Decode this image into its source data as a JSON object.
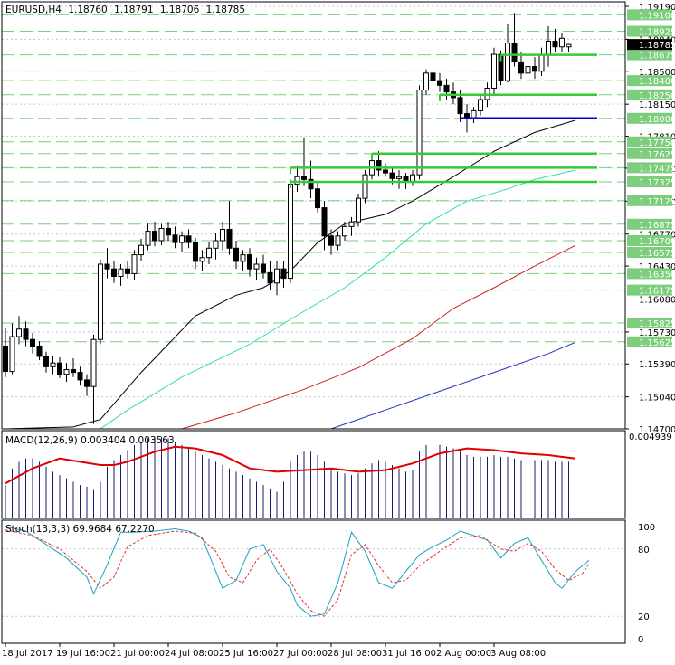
{
  "header": {
    "symbol": "EURUSD,H4",
    "open": "1.18760",
    "high": "1.18791",
    "low": "1.18706",
    "close": "1.18785"
  },
  "colors": {
    "background": "#ffffff",
    "frame": "#000000",
    "grid": "#c7c7c7",
    "level_dash": "#7ccd7c",
    "level_label_bg": "#7ccd7c",
    "support": "#33cc33",
    "pivot": "#0000c8",
    "ma_fast": "#000000",
    "ma_mid": "#33ddaa",
    "ma_slow": "#cc2222",
    "ma_long": "#2233bb",
    "macd_hist": "#1a1a6a",
    "macd_signal": "#e00000",
    "stoch_main": "#1ba1c5",
    "stoch_signal": "#e03030",
    "current_price_bg": "#000000"
  },
  "price_axis": {
    "min": 1.147,
    "max": 1.1919,
    "ticks": [
      "1.19190",
      "1.18840",
      "1.18500",
      "1.18150",
      "1.17810",
      "1.17470",
      "1.17120",
      "1.16770",
      "1.16430",
      "1.16080",
      "1.15730",
      "1.15390",
      "1.15040",
      "1.14700"
    ],
    "level_labels": [
      "1.19100",
      "1.18925",
      "1.18675",
      "1.18400",
      "1.18250",
      "1.18000",
      "1.17750",
      "1.17625",
      "1.17475",
      "1.17325",
      "1.17125",
      "1.16875",
      "1.16700",
      "1.16575",
      "1.16350",
      "1.16175",
      "1.15825",
      "1.15625"
    ],
    "current_price": "1.18785"
  },
  "chart_data": {
    "type": "candlestick",
    "candles": [
      [
        1.1558,
        1.1577,
        1.1525,
        1.1531
      ],
      [
        1.1531,
        1.1582,
        1.1528,
        1.1568
      ],
      [
        1.1568,
        1.159,
        1.156,
        1.1576
      ],
      [
        1.1576,
        1.1584,
        1.1558,
        1.1565
      ],
      [
        1.1565,
        1.1572,
        1.155,
        1.1558
      ],
      [
        1.1558,
        1.1563,
        1.1543,
        1.1547
      ],
      [
        1.1547,
        1.1552,
        1.153,
        1.1536
      ],
      [
        1.1536,
        1.1548,
        1.1528,
        1.154
      ],
      [
        1.154,
        1.1546,
        1.1524,
        1.1528
      ],
      [
        1.1528,
        1.154,
        1.152,
        1.1533
      ],
      [
        1.1533,
        1.1545,
        1.1525,
        1.153
      ],
      [
        1.153,
        1.1536,
        1.1516,
        1.1522
      ],
      [
        1.1522,
        1.1528,
        1.1505,
        1.1515
      ],
      [
        1.1515,
        1.157,
        1.1475,
        1.1565
      ],
      [
        1.1565,
        1.165,
        1.156,
        1.1645
      ],
      [
        1.1645,
        1.1662,
        1.163,
        1.164
      ],
      [
        1.164,
        1.1648,
        1.1625,
        1.1632
      ],
      [
        1.1632,
        1.1645,
        1.1622,
        1.164
      ],
      [
        1.164,
        1.1648,
        1.163,
        1.1635
      ],
      [
        1.1635,
        1.166,
        1.1628,
        1.1655
      ],
      [
        1.1655,
        1.1672,
        1.1648,
        1.1665
      ],
      [
        1.1665,
        1.1688,
        1.166,
        1.168
      ],
      [
        1.168,
        1.169,
        1.1664,
        1.167
      ],
      [
        1.167,
        1.1688,
        1.1665,
        1.1683
      ],
      [
        1.1683,
        1.169,
        1.167,
        1.1676
      ],
      [
        1.1676,
        1.1685,
        1.1662,
        1.1668
      ],
      [
        1.1668,
        1.168,
        1.1658,
        1.1675
      ],
      [
        1.1675,
        1.1682,
        1.1662,
        1.1668
      ],
      [
        1.1668,
        1.1673,
        1.164,
        1.1648
      ],
      [
        1.1648,
        1.166,
        1.1638,
        1.1652
      ],
      [
        1.1652,
        1.1668,
        1.1645,
        1.1662
      ],
      [
        1.1662,
        1.1678,
        1.165,
        1.167
      ],
      [
        1.167,
        1.169,
        1.166,
        1.1682
      ],
      [
        1.1682,
        1.1712,
        1.1655,
        1.1662
      ],
      [
        1.1662,
        1.167,
        1.164,
        1.1648
      ],
      [
        1.1648,
        1.166,
        1.1638,
        1.1655
      ],
      [
        1.1655,
        1.1662,
        1.1632,
        1.164
      ],
      [
        1.164,
        1.1652,
        1.1628,
        1.1645
      ],
      [
        1.1645,
        1.1655,
        1.163,
        1.1636
      ],
      [
        1.1636,
        1.1648,
        1.1618,
        1.1625
      ],
      [
        1.1625,
        1.1648,
        1.1612,
        1.164
      ],
      [
        1.164,
        1.1648,
        1.162,
        1.163
      ],
      [
        1.163,
        1.1735,
        1.1625,
        1.173
      ],
      [
        1.173,
        1.175,
        1.1722,
        1.1738
      ],
      [
        1.1738,
        1.178,
        1.1728,
        1.1735
      ],
      [
        1.1735,
        1.1755,
        1.1715,
        1.1725
      ],
      [
        1.1725,
        1.1732,
        1.17,
        1.1705
      ],
      [
        1.1705,
        1.1712,
        1.166,
        1.1675
      ],
      [
        1.1675,
        1.1682,
        1.1655,
        1.1665
      ],
      [
        1.1665,
        1.168,
        1.166,
        1.1675
      ],
      [
        1.1675,
        1.169,
        1.167,
        1.1685
      ],
      [
        1.1685,
        1.1695,
        1.1675,
        1.169
      ],
      [
        1.169,
        1.172,
        1.1685,
        1.1715
      ],
      [
        1.1715,
        1.1745,
        1.171,
        1.174
      ],
      [
        1.174,
        1.1762,
        1.1735,
        1.1755
      ],
      [
        1.1755,
        1.1765,
        1.1738,
        1.1745
      ],
      [
        1.1745,
        1.1752,
        1.1738,
        1.1742
      ],
      [
        1.1742,
        1.1748,
        1.173,
        1.1736
      ],
      [
        1.1736,
        1.1745,
        1.1725,
        1.1738
      ],
      [
        1.1738,
        1.1742,
        1.1725,
        1.1732
      ],
      [
        1.1732,
        1.1745,
        1.1728,
        1.174
      ],
      [
        1.174,
        1.1835,
        1.1735,
        1.183
      ],
      [
        1.183,
        1.1852,
        1.1825,
        1.1848
      ],
      [
        1.1848,
        1.1855,
        1.1832,
        1.184
      ],
      [
        1.184,
        1.1848,
        1.1828,
        1.1835
      ],
      [
        1.1835,
        1.1842,
        1.182,
        1.1828
      ],
      [
        1.1828,
        1.1838,
        1.1815,
        1.1822
      ],
      [
        1.1822,
        1.183,
        1.1796,
        1.1805
      ],
      [
        1.1805,
        1.1815,
        1.1785,
        1.18
      ],
      [
        1.18,
        1.1812,
        1.1795,
        1.1808
      ],
      [
        1.1808,
        1.1825,
        1.1803,
        1.182
      ],
      [
        1.182,
        1.1838,
        1.1812,
        1.1832
      ],
      [
        1.1832,
        1.1875,
        1.1825,
        1.1868
      ],
      [
        1.1868,
        1.1872,
        1.1835,
        1.184
      ],
      [
        1.184,
        1.19,
        1.1838,
        1.188
      ],
      [
        1.188,
        1.1912,
        1.1855,
        1.186
      ],
      [
        1.186,
        1.187,
        1.1842,
        1.1848
      ],
      [
        1.1848,
        1.1862,
        1.184,
        1.1855
      ],
      [
        1.1855,
        1.1865,
        1.1842,
        1.185
      ],
      [
        1.185,
        1.1875,
        1.1845,
        1.1868
      ],
      [
        1.1868,
        1.1898,
        1.1855,
        1.1882
      ],
      [
        1.1882,
        1.1895,
        1.187,
        1.1876
      ],
      [
        1.1876,
        1.189,
        1.187,
        1.1885
      ],
      [
        1.1876,
        1.18791,
        1.18706,
        1.18785
      ]
    ],
    "support_levels": [
      {
        "price": 1.18675,
        "from_index": 73
      },
      {
        "price": 1.1825,
        "from_index": 64
      },
      {
        "price": 1.17625,
        "from_index": 54
      },
      {
        "price": 1.17475,
        "from_index": 42
      },
      {
        "price": 1.17325,
        "from_index": 42
      }
    ],
    "pivot_level": {
      "price": 1.18,
      "from_index": 67
    },
    "moving_averages": [
      {
        "key": "ma_fast",
        "points": [
          [
            0,
            1.147
          ],
          [
            10,
            1.1472
          ],
          [
            14,
            1.148
          ],
          [
            20,
            1.153
          ],
          [
            28,
            1.159
          ],
          [
            34,
            1.1612
          ],
          [
            38,
            1.162
          ],
          [
            42,
            1.1638
          ],
          [
            46,
            1.1668
          ],
          [
            50,
            1.1688
          ],
          [
            56,
            1.1698
          ],
          [
            60,
            1.1712
          ],
          [
            66,
            1.1738
          ],
          [
            72,
            1.1765
          ],
          [
            78,
            1.1785
          ],
          [
            84,
            1.1798
          ]
        ]
      },
      {
        "key": "ma_mid",
        "points": [
          [
            14,
            1.147
          ],
          [
            18,
            1.149
          ],
          [
            26,
            1.1525
          ],
          [
            36,
            1.156
          ],
          [
            44,
            1.1595
          ],
          [
            50,
            1.162
          ],
          [
            56,
            1.1652
          ],
          [
            62,
            1.1688
          ],
          [
            68,
            1.1712
          ],
          [
            74,
            1.1725
          ],
          [
            78,
            1.1735
          ],
          [
            84,
            1.1745
          ]
        ]
      },
      {
        "key": "ma_slow",
        "points": [
          [
            26,
            1.147
          ],
          [
            34,
            1.1487
          ],
          [
            44,
            1.1512
          ],
          [
            52,
            1.1535
          ],
          [
            60,
            1.1566
          ],
          [
            66,
            1.1598
          ],
          [
            72,
            1.162
          ],
          [
            78,
            1.1643
          ],
          [
            84,
            1.1665
          ]
        ]
      },
      {
        "key": "ma_long",
        "points": [
          [
            48,
            1.147
          ],
          [
            56,
            1.149
          ],
          [
            64,
            1.151
          ],
          [
            72,
            1.153
          ],
          [
            80,
            1.155
          ],
          [
            84,
            1.1562
          ]
        ]
      }
    ],
    "time_labels": [
      "18 Jul 2017",
      "19 Jul 16:00",
      "21 Jul 00:00",
      "24 Jul 08:00",
      "25 Jul 16:00",
      "27 Jul 00:00",
      "28 Jul 08:00",
      "31 Jul 16:00",
      "2 Aug 00:00",
      "3 Aug 08:00"
    ],
    "time_label_indices": [
      0,
      8,
      16,
      24,
      32,
      40,
      48,
      56,
      64,
      72
    ]
  },
  "macd": {
    "label": "MACD(12,26,9) 0.003404 0.003563",
    "max_label": "0.004939",
    "min": 0,
    "max": 0.004939,
    "hist": [
      0.002,
      0.003,
      0.0034,
      0.0036,
      0.0036,
      0.0034,
      0.0031,
      0.0028,
      0.0026,
      0.0024,
      0.0022,
      0.002,
      0.0019,
      0.0017,
      0.0022,
      0.0031,
      0.0035,
      0.0038,
      0.0041,
      0.0044,
      0.0046,
      0.0048,
      0.0049,
      0.0049,
      0.0048,
      0.0046,
      0.0044,
      0.0042,
      0.004,
      0.0038,
      0.0036,
      0.0034,
      0.0032,
      0.003,
      0.0028,
      0.0026,
      0.0024,
      0.0022,
      0.002,
      0.0018,
      0.0016,
      0.0022,
      0.0034,
      0.0038,
      0.004,
      0.004,
      0.0038,
      0.0034,
      0.003,
      0.0028,
      0.0027,
      0.0026,
      0.0027,
      0.003,
      0.0033,
      0.0035,
      0.0034,
      0.0032,
      0.003,
      0.0028,
      0.0029,
      0.004,
      0.0044,
      0.0045,
      0.0044,
      0.0043,
      0.0042,
      0.004,
      0.0038,
      0.0037,
      0.0037,
      0.0037,
      0.0038,
      0.0037,
      0.0037,
      0.0036,
      0.0035,
      0.0035,
      0.0035,
      0.0035,
      0.0035,
      0.0034,
      0.0034,
      0.0034
    ],
    "signal_points": [
      [
        0,
        0.0021
      ],
      [
        4,
        0.003
      ],
      [
        8,
        0.0036
      ],
      [
        11,
        0.0034
      ],
      [
        14,
        0.0032
      ],
      [
        16,
        0.0032
      ],
      [
        18,
        0.0034
      ],
      [
        22,
        0.004
      ],
      [
        25,
        0.0043
      ],
      [
        28,
        0.0042
      ],
      [
        32,
        0.0038
      ],
      [
        36,
        0.003
      ],
      [
        40,
        0.0028
      ],
      [
        44,
        0.0029
      ],
      [
        48,
        0.003
      ],
      [
        52,
        0.0028
      ],
      [
        56,
        0.0029
      ],
      [
        60,
        0.0033
      ],
      [
        64,
        0.0039
      ],
      [
        68,
        0.0042
      ],
      [
        72,
        0.0041
      ],
      [
        76,
        0.0039
      ],
      [
        80,
        0.0038
      ],
      [
        84,
        0.0036
      ]
    ]
  },
  "stoch": {
    "label": "Stoch(13,3,3) 69.9684 67.2270",
    "scale_labels": [
      "100",
      "80",
      "20",
      "0"
    ],
    "scale_values": [
      100,
      80,
      20,
      0
    ],
    "main_points": [
      [
        0,
        100
      ],
      [
        3,
        96
      ],
      [
        6,
        84
      ],
      [
        9,
        72
      ],
      [
        12,
        55
      ],
      [
        13,
        40
      ],
      [
        15,
        66
      ],
      [
        17,
        95
      ],
      [
        19,
        95
      ],
      [
        22,
        96
      ],
      [
        25,
        98
      ],
      [
        27,
        96
      ],
      [
        29,
        90
      ],
      [
        31,
        60
      ],
      [
        32,
        45
      ],
      [
        34,
        52
      ],
      [
        36,
        80
      ],
      [
        38,
        84
      ],
      [
        40,
        60
      ],
      [
        42,
        45
      ],
      [
        43,
        30
      ],
      [
        45,
        20
      ],
      [
        47,
        22
      ],
      [
        49,
        50
      ],
      [
        51,
        95
      ],
      [
        53,
        78
      ],
      [
        55,
        50
      ],
      [
        57,
        45
      ],
      [
        59,
        60
      ],
      [
        61,
        75
      ],
      [
        63,
        82
      ],
      [
        65,
        88
      ],
      [
        67,
        96
      ],
      [
        69,
        92
      ],
      [
        71,
        88
      ],
      [
        73,
        72
      ],
      [
        75,
        85
      ],
      [
        77,
        90
      ],
      [
        79,
        70
      ],
      [
        81,
        50
      ],
      [
        82,
        45
      ],
      [
        84,
        60
      ],
      [
        86,
        70
      ]
    ],
    "signal_points": [
      [
        0,
        97
      ],
      [
        4,
        92
      ],
      [
        8,
        80
      ],
      [
        12,
        60
      ],
      [
        14,
        45
      ],
      [
        16,
        55
      ],
      [
        18,
        82
      ],
      [
        21,
        92
      ],
      [
        25,
        96
      ],
      [
        28,
        94
      ],
      [
        31,
        78
      ],
      [
        33,
        55
      ],
      [
        35,
        50
      ],
      [
        37,
        70
      ],
      [
        39,
        80
      ],
      [
        41,
        62
      ],
      [
        43,
        40
      ],
      [
        45,
        25
      ],
      [
        47,
        20
      ],
      [
        49,
        35
      ],
      [
        51,
        75
      ],
      [
        53,
        84
      ],
      [
        55,
        65
      ],
      [
        57,
        50
      ],
      [
        59,
        52
      ],
      [
        61,
        65
      ],
      [
        64,
        78
      ],
      [
        67,
        90
      ],
      [
        70,
        92
      ],
      [
        73,
        80
      ],
      [
        75,
        78
      ],
      [
        77,
        85
      ],
      [
        79,
        78
      ],
      [
        81,
        62
      ],
      [
        83,
        52
      ],
      [
        85,
        58
      ],
      [
        86,
        67
      ]
    ]
  }
}
